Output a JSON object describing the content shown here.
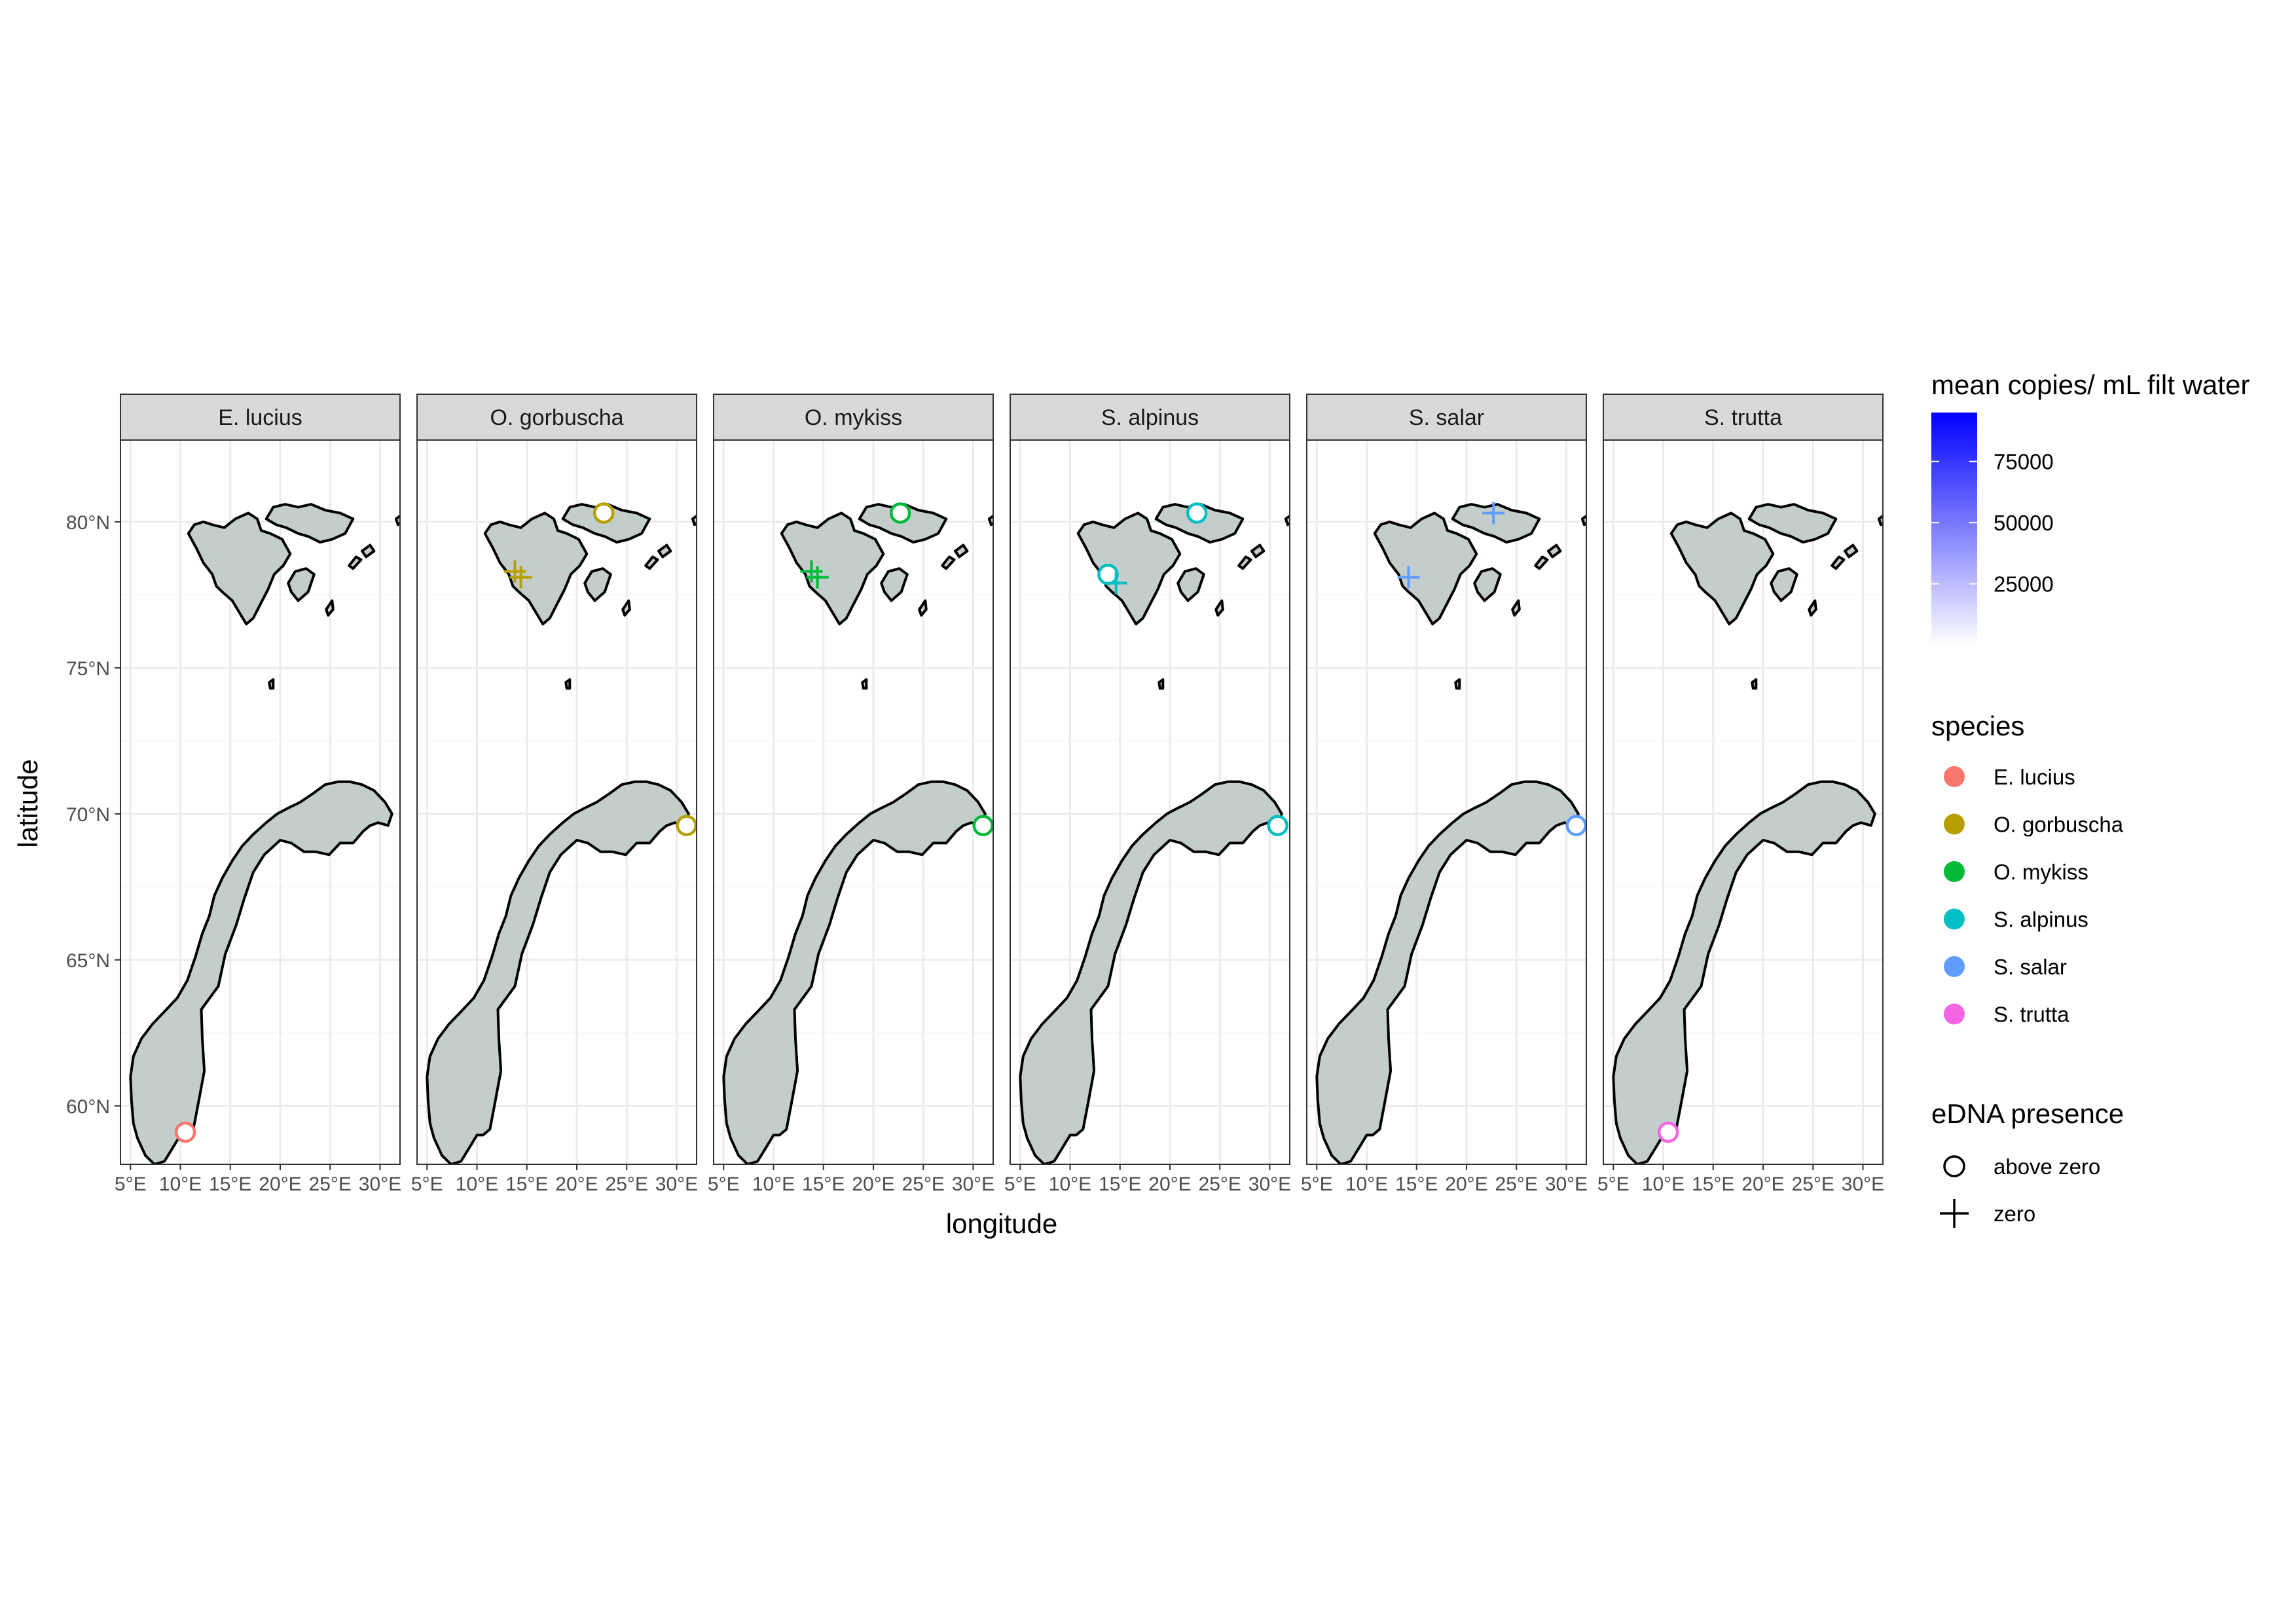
{
  "chart_data": {
    "type": "map",
    "facets": [
      "E. lucius",
      "O. gorbuscha",
      "O. mykiss",
      "S. alpinus",
      "S. salar",
      "S. trutta"
    ],
    "xlabel": "longitude",
    "ylabel": "latitude",
    "x_ticks": [
      "5°E",
      "10°E",
      "15°E",
      "20°E",
      "25°E",
      "30°E"
    ],
    "x_tick_values": [
      5,
      10,
      15,
      20,
      25,
      30
    ],
    "y_ticks": [
      "60°N",
      "65°N",
      "70°N",
      "75°N",
      "80°N"
    ],
    "y_tick_values": [
      60,
      65,
      70,
      75,
      80
    ],
    "xlim": [
      4,
      32
    ],
    "ylim": [
      58,
      82.8
    ],
    "grid": true,
    "species_colors": {
      "E. lucius": "#F8766D",
      "O. gorbuscha": "#B79F00",
      "O. mykiss": "#00BA38",
      "S. alpinus": "#00BFC4",
      "S. salar": "#619CFF",
      "S. trutta": "#F564E3"
    },
    "points": [
      {
        "facet": "E. lucius",
        "lon": 10.5,
        "lat": 59.1,
        "presence": "above zero",
        "copies": 0
      },
      {
        "facet": "O. gorbuscha",
        "lon": 22.7,
        "lat": 80.3,
        "presence": "above zero",
        "copies": 0
      },
      {
        "facet": "O. gorbuscha",
        "lon": 13.8,
        "lat": 78.3,
        "presence": "zero",
        "copies": 0
      },
      {
        "facet": "O. gorbuscha",
        "lon": 14.4,
        "lat": 78.1,
        "presence": "zero",
        "copies": 0
      },
      {
        "facet": "O. gorbuscha",
        "lon": 31.0,
        "lat": 69.6,
        "presence": "above zero",
        "copies": 0
      },
      {
        "facet": "O. mykiss",
        "lon": 22.7,
        "lat": 80.3,
        "presence": "above zero",
        "copies": 0
      },
      {
        "facet": "O. mykiss",
        "lon": 13.8,
        "lat": 78.3,
        "presence": "zero",
        "copies": 0
      },
      {
        "facet": "O. mykiss",
        "lon": 14.4,
        "lat": 78.1,
        "presence": "zero",
        "copies": 0
      },
      {
        "facet": "O. mykiss",
        "lon": 31.0,
        "lat": 69.6,
        "presence": "above zero",
        "copies": 0
      },
      {
        "facet": "S. alpinus",
        "lon": 22.7,
        "lat": 80.3,
        "presence": "above zero",
        "copies": 0
      },
      {
        "facet": "S. alpinus",
        "lon": 13.8,
        "lat": 78.2,
        "presence": "above zero",
        "copies": 0
      },
      {
        "facet": "S. alpinus",
        "lon": 14.6,
        "lat": 77.9,
        "presence": "zero",
        "copies": 0
      },
      {
        "facet": "S. alpinus",
        "lon": 30.8,
        "lat": 69.6,
        "presence": "above zero",
        "copies": 0
      },
      {
        "facet": "S. salar",
        "lon": 22.7,
        "lat": 80.3,
        "presence": "zero",
        "copies": 0
      },
      {
        "facet": "S. salar",
        "lon": 14.2,
        "lat": 78.1,
        "presence": "zero",
        "copies": 0
      },
      {
        "facet": "S. salar",
        "lon": 31.0,
        "lat": 69.6,
        "presence": "above zero",
        "copies": 0
      },
      {
        "facet": "S. trutta",
        "lon": 10.5,
        "lat": 59.1,
        "presence": "above zero",
        "copies": 0
      }
    ],
    "legend": {
      "fill_title": "mean copies/ mL filt water",
      "fill_breaks": [
        75000,
        50000,
        25000
      ],
      "fill_range": [
        0,
        95000
      ],
      "fill_low": "#FFFFFF",
      "fill_high": "#0000FF",
      "color_title": "species",
      "color_entries": [
        "E. lucius",
        "O. gorbuscha",
        "O. mykiss",
        "S. alpinus",
        "S. salar",
        "S. trutta"
      ],
      "shape_title": "eDNA presence",
      "shape_entries": [
        {
          "label": "above zero",
          "shape": "circle"
        },
        {
          "label": "zero",
          "shape": "plus"
        }
      ]
    }
  }
}
